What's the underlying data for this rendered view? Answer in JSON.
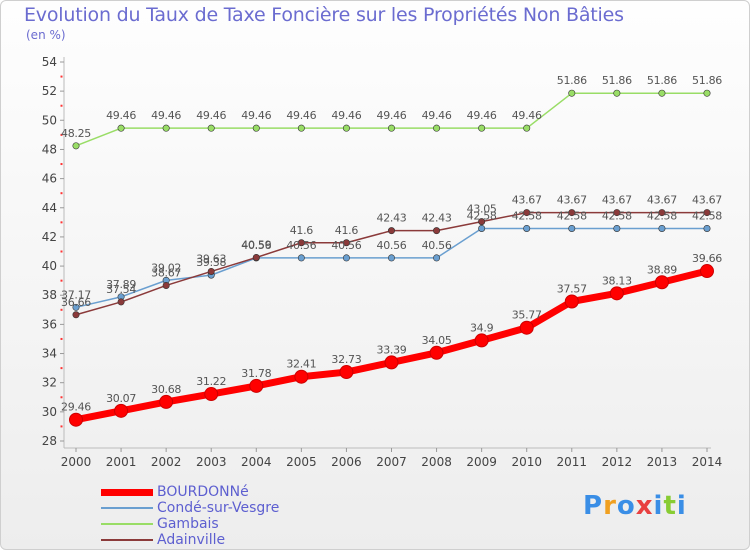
{
  "header": {
    "title": "Evolution du Taux de Taxe Foncière sur les Propriétés Non Bâties",
    "unit": "(en %)"
  },
  "brand": {
    "logo_text": "Proxiti"
  },
  "chart_data": {
    "type": "line",
    "title": "Evolution du Taux de Taxe Foncière sur les Propriétés Non Bâties",
    "ylabel": "(en %)",
    "xlabel": "",
    "x": [
      "2000",
      "2001",
      "2002",
      "2003",
      "2004",
      "2005",
      "2006",
      "2007",
      "2008",
      "2009",
      "2010",
      "2011",
      "2012",
      "2013",
      "2014"
    ],
    "ylim": [
      28,
      54
    ],
    "y_ticks": [
      28,
      30,
      32,
      34,
      36,
      38,
      40,
      42,
      44,
      46,
      48,
      50,
      52,
      54
    ],
    "grid": false,
    "legend_position": "bottom-left",
    "series": [
      {
        "name": "BOURDONNé",
        "color": "#ff0000",
        "values": [
          29.46,
          30.07,
          30.68,
          31.22,
          31.78,
          32.41,
          32.73,
          33.39,
          34.05,
          34.9,
          35.77,
          37.57,
          38.13,
          38.89,
          39.66
        ]
      },
      {
        "name": "Condé-sur-Vesgre",
        "color": "#6a9fd0",
        "values": [
          37.17,
          37.89,
          39.02,
          39.38,
          40.56,
          40.56,
          40.56,
          40.56,
          40.56,
          42.58,
          42.58,
          42.58,
          42.58,
          42.58,
          42.58
        ]
      },
      {
        "name": "Gambais",
        "color": "#99dd66",
        "values": [
          48.25,
          49.46,
          49.46,
          49.46,
          49.46,
          49.46,
          49.46,
          49.46,
          49.46,
          49.46,
          49.46,
          51.86,
          51.86,
          51.86,
          51.86
        ]
      },
      {
        "name": "Adainville",
        "color": "#8b3a3a",
        "values": [
          36.66,
          37.54,
          38.67,
          39.63,
          40.59,
          41.6,
          41.6,
          42.43,
          42.43,
          43.05,
          43.67,
          43.67,
          43.67,
          43.67,
          43.67
        ]
      }
    ]
  }
}
